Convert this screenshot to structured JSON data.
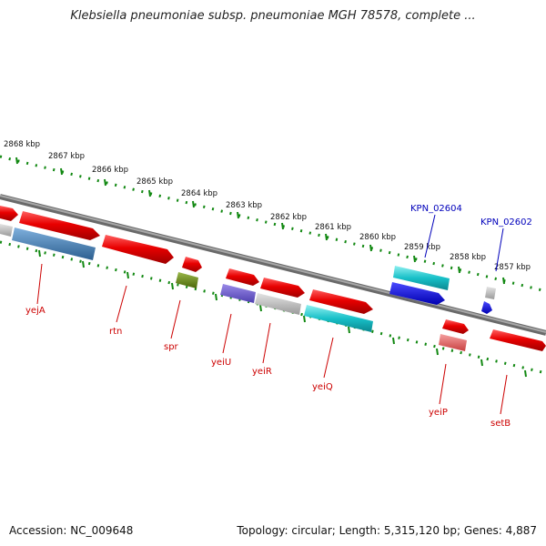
{
  "title": "Klebsiella pneumoniae subsp. pneumoniae MGH 78578, complete ...",
  "footer": {
    "accession": "Accession: NC_009648",
    "summary": "Topology: circular; Length: 5,315,120 bp; Genes: 4,887"
  },
  "ruler": {
    "labels": [
      "2868 kbp",
      "2867 kbp",
      "2866 kbp",
      "2865 kbp",
      "2864 kbp",
      "2863 kbp",
      "2862 kbp",
      "2861 kbp",
      "2860 kbp",
      "2859 kbp",
      "2858 kbp",
      "2857 kbp"
    ]
  },
  "gene_labels": [
    "yejA",
    "rtn",
    "spr",
    "yeiU",
    "yeiR",
    "yeiQ",
    "yeiP",
    "setB"
  ],
  "locus_labels": [
    "KPN_02604",
    "KPN_02602"
  ],
  "colors": {
    "red": "#e80000",
    "steelblue": "#3a78b0",
    "olive": "#5f7f10",
    "slateblue": "#6a5acd",
    "gray": "#b0b0b0",
    "cyan": "#18c0c8",
    "blue": "#0000e0",
    "salmon": "#e06060",
    "tick": "#118811",
    "backbone": "#808080"
  }
}
